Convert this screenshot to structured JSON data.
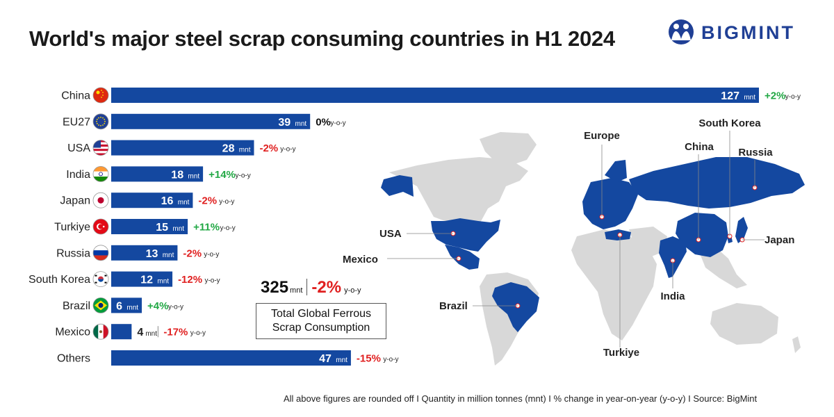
{
  "title": "World's major steel scrap consuming countries in H1 2024",
  "brand": {
    "name": "BIGMINT",
    "color": "#1f3f95"
  },
  "colors": {
    "bar": "#1448a0",
    "positive": "#22a845",
    "negative": "#e02020",
    "neutral": "#111111",
    "map_highlight": "#1448a0",
    "map_land": "#d8d8d8"
  },
  "chart_data": {
    "type": "bar",
    "orientation": "horizontal",
    "unit": "mnt",
    "change_suffix": "y-o-y",
    "categories": [
      "China",
      "EU27",
      "USA",
      "India",
      "Japan",
      "Turkiye",
      "Russia",
      "South Korea",
      "Brazil",
      "Mexico",
      "Others"
    ],
    "values": [
      127,
      39,
      28,
      18,
      16,
      15,
      13,
      12,
      6,
      4,
      47
    ],
    "changes": [
      "+2%",
      "0%",
      "-2%",
      "+14%",
      "-2%",
      "+11%",
      "-2%",
      "-12%",
      "+4%",
      "-17%",
      "-15%"
    ],
    "change_sign": [
      "positive",
      "neutral",
      "negative",
      "positive",
      "negative",
      "positive",
      "negative",
      "negative",
      "positive",
      "negative",
      "negative"
    ],
    "flags": [
      "china-flag-icon",
      "eu-flag-icon",
      "usa-flag-icon",
      "india-flag-icon",
      "japan-flag-icon",
      "turkiye-flag-icon",
      "russia-flag-icon",
      "south-korea-flag-icon",
      "brazil-flag-icon",
      "mexico-flag-icon",
      ""
    ],
    "xlim": [
      0,
      127
    ],
    "grid": false
  },
  "total": {
    "value": "325",
    "unit": "mnt",
    "change": "-2%",
    "change_suffix": "y-o-y",
    "label_line1": "Total Global Ferrous",
    "label_line2": "Scrap Consumption"
  },
  "map": {
    "labels": [
      "Europe",
      "South Korea",
      "China",
      "Russia",
      "USA",
      "Mexico",
      "Japan",
      "Brazil",
      "India",
      "Turkiye"
    ]
  },
  "footer": "All above figures are rounded off  I  Quantity in million tonnes (mnt)  I  % change in year-on-year (y-o-y)  I  Source: BigMint"
}
